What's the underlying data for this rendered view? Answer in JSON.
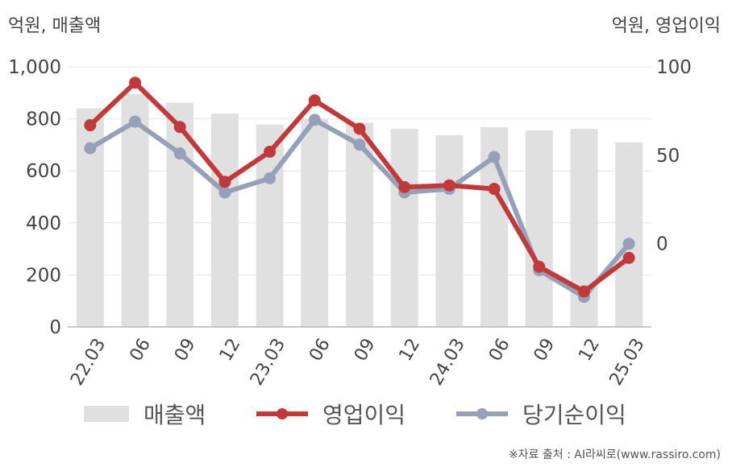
{
  "units": {
    "left": "억원, 매출액",
    "right": "억원, 영업이익"
  },
  "source": "※자료 출처 : AI라씨로(www.rassiro.com)",
  "legend": {
    "bar": "매출액",
    "op": "영업이익",
    "net": "당기순이익"
  },
  "colors": {
    "bar": "#e0e0e0",
    "op": "#c0393b",
    "net": "#96a0b8",
    "grid": "#e6e6e6",
    "axis": "#b5b5b5"
  },
  "chart_data": {
    "type": "bar+line",
    "categories": [
      "22.03",
      "06",
      "09",
      "12",
      "23.03",
      "06",
      "09",
      "12",
      "24.03",
      "06",
      "09",
      "12",
      "25.03"
    ],
    "left_axis": {
      "ylim": [
        0,
        1000
      ],
      "ticks": [
        "0",
        "200",
        "400",
        "600",
        "800",
        "1,000"
      ],
      "tick_values": [
        0,
        200,
        400,
        600,
        800,
        1000
      ]
    },
    "right_axis": {
      "ylim": [
        -47,
        100
      ],
      "ticks": [
        "0",
        "50",
        "100"
      ],
      "tick_values": [
        0,
        50,
        100
      ]
    },
    "series": [
      {
        "name": "매출액",
        "axis": "left",
        "kind": "bar",
        "values": [
          840,
          895,
          862,
          820,
          778,
          800,
          785,
          762,
          738,
          768,
          755,
          762,
          710
        ]
      },
      {
        "name": "영업이익",
        "axis": "right",
        "kind": "line",
        "values": [
          67,
          91,
          66,
          35,
          52,
          81,
          65,
          32,
          33,
          31,
          -13,
          -27,
          -8
        ]
      },
      {
        "name": "당기순이익",
        "axis": "right",
        "kind": "line",
        "values": [
          54,
          69,
          51,
          29,
          37,
          70,
          56,
          29,
          31,
          49,
          -15,
          -30,
          0
        ]
      }
    ]
  }
}
